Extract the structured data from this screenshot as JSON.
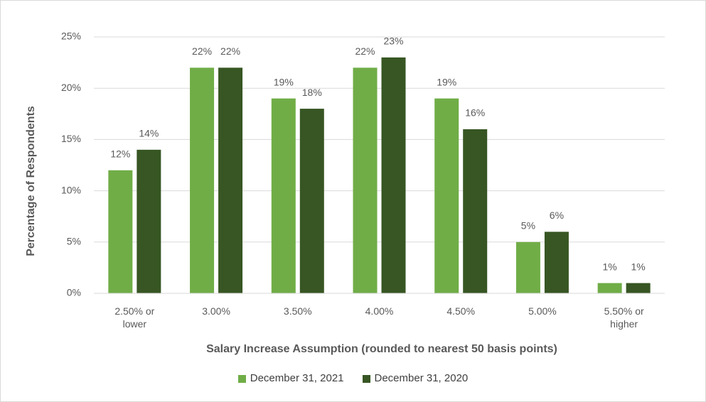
{
  "chart_data": {
    "type": "bar",
    "x_label": "Salary Increase Assumption (rounded to nearest 50 basis points)",
    "y_label": "Percentage of Respondents",
    "categories": [
      "2.50% or lower",
      "3.00%",
      "3.50%",
      "4.00%",
      "4.50%",
      "5.00%",
      "5.50% or higher"
    ],
    "series": [
      {
        "name": "December 31, 2021",
        "color": "#70ad47",
        "values": [
          12,
          22,
          19,
          22,
          19,
          5,
          1
        ],
        "value_labels": [
          "12%",
          "22%",
          "19%",
          "22%",
          "19%",
          "5%",
          "1%"
        ]
      },
      {
        "name": "December 31, 2020",
        "color": "#375623",
        "values": [
          14,
          22,
          18,
          23,
          16,
          6,
          1
        ],
        "value_labels": [
          "14%",
          "22%",
          "18%",
          "23%",
          "16%",
          "6%",
          "1%"
        ]
      }
    ],
    "ylim": [
      0,
      25
    ],
    "yticks": [
      {
        "value": 0,
        "label": "0%"
      },
      {
        "value": 5,
        "label": "5%"
      },
      {
        "value": 10,
        "label": "10%"
      },
      {
        "value": 15,
        "label": "15%"
      },
      {
        "value": 20,
        "label": "20%"
      },
      {
        "value": 25,
        "label": "25%"
      }
    ],
    "grid": true
  }
}
